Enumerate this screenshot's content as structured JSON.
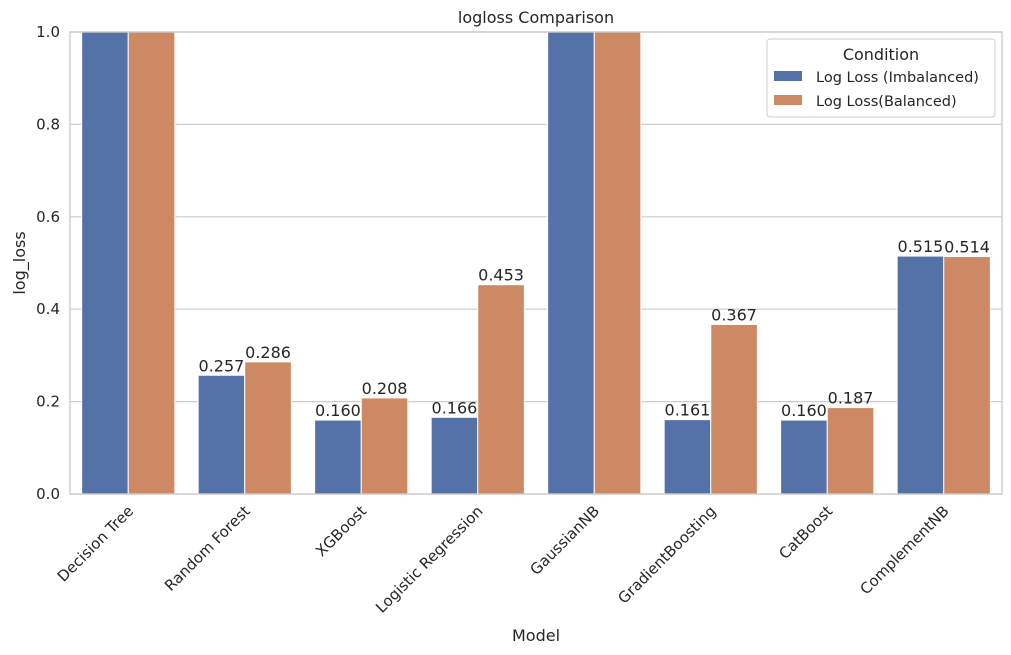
{
  "chart_data": {
    "type": "bar",
    "title": "logloss Comparison",
    "xlabel": "Model",
    "ylabel": "log_loss",
    "ylim": [
      0,
      1.0
    ],
    "yticks": [
      "0.0",
      "0.2",
      "0.4",
      "0.6",
      "0.8",
      "1.0"
    ],
    "grid": true,
    "legend_placement": "top-right",
    "legend_title": "Condition",
    "categories": [
      "Decision Tree",
      "Random Forest",
      "XGBoost",
      "Logistic Regression",
      "GaussianNB",
      "GradientBoosting",
      "CatBoost",
      "ComplementNB"
    ],
    "series": [
      {
        "name": "Log Loss (Imbalanced)",
        "color": "#5572a8",
        "values": [
          1.0,
          0.257,
          0.16,
          0.166,
          1.0,
          0.161,
          0.16,
          0.515
        ],
        "labels": [
          "",
          "0.257",
          "0.160",
          "0.166",
          "",
          "0.161",
          "0.160",
          "0.515"
        ]
      },
      {
        "name": "Log Loss(Balanced)",
        "color": "#cd8963",
        "values": [
          1.0,
          0.286,
          0.208,
          0.453,
          1.0,
          0.367,
          0.187,
          0.514
        ],
        "labels": [
          "",
          "0.286",
          "0.208",
          "0.453",
          "",
          "0.367",
          "0.187",
          "0.514"
        ]
      }
    ]
  }
}
